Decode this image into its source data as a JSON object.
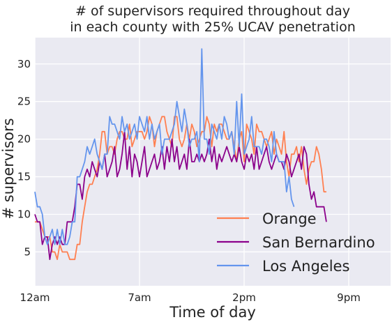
{
  "chart_data": {
    "type": "line",
    "title_lines": [
      "# of supervisors required throughout day",
      "in each county with 25% UCAV penetration"
    ],
    "xlabel": "Time of day",
    "ylabel": "# supervisors",
    "x_ticks": [
      {
        "label": "12am",
        "hour": 0
      },
      {
        "label": "7am",
        "hour": 7
      },
      {
        "label": "2pm",
        "hour": 14
      },
      {
        "label": "9pm",
        "hour": 21
      }
    ],
    "y_ticks": [
      5,
      10,
      15,
      20,
      25,
      30
    ],
    "xlim": [
      0,
      23.8
    ],
    "ylim": [
      0.5,
      33.5
    ],
    "x_step_hours": 0.1667,
    "grid": true,
    "background": "#EAEAF2",
    "legend_position": "lower-right",
    "series": [
      {
        "name": "Orange",
        "color": "#FF7F50",
        "values": [
          9,
          9,
          9,
          8,
          7,
          7,
          7,
          5,
          5,
          4,
          6,
          5,
          5,
          5,
          4,
          4,
          4,
          6,
          6,
          9,
          11,
          13,
          14,
          14,
          15,
          16,
          18,
          21,
          21,
          18,
          19,
          19,
          18,
          20,
          21,
          21,
          20,
          20,
          22,
          19,
          20,
          21,
          21,
          21,
          20,
          21,
          23,
          22,
          19,
          21,
          22,
          23,
          23,
          21,
          20,
          19,
          23,
          23,
          20,
          19,
          20,
          22,
          20,
          22,
          21,
          19,
          20,
          21,
          21,
          23,
          22,
          19,
          22,
          21,
          22,
          22,
          21,
          20,
          20,
          21,
          19,
          17,
          20,
          21,
          17,
          22,
          21,
          20,
          18,
          22,
          21,
          21,
          20,
          19,
          20,
          21,
          18,
          20,
          19,
          18,
          21,
          17,
          15,
          18,
          18,
          19,
          17,
          19,
          16,
          14,
          16,
          17,
          17,
          19,
          18,
          16,
          13,
          13
        ]
      },
      {
        "name": "San Bernardino",
        "color": "#8B008B",
        "values": [
          10,
          9,
          9,
          6,
          7,
          7,
          4,
          6,
          7,
          6,
          7,
          6,
          6,
          9,
          9,
          9,
          11,
          14,
          14,
          12,
          15,
          16,
          15,
          17,
          16,
          15,
          17,
          16,
          18,
          15,
          16,
          17,
          19,
          15,
          16,
          18,
          21,
          16,
          19,
          15,
          18,
          17,
          15,
          17,
          19,
          15,
          16,
          17,
          18,
          16,
          17,
          19,
          16,
          19,
          17,
          20,
          17,
          19,
          16,
          17,
          18,
          16,
          20,
          17,
          17,
          18,
          17,
          18,
          17,
          18,
          20,
          17,
          19,
          16,
          18,
          17,
          18,
          19,
          18,
          17,
          18,
          17,
          19,
          17,
          16,
          18,
          17,
          18,
          16,
          19,
          16,
          17,
          18,
          19,
          17,
          16,
          17,
          18,
          17,
          17,
          16,
          18,
          17,
          15,
          16,
          17,
          18,
          16,
          19,
          18,
          14,
          12,
          13,
          11,
          11,
          11,
          11,
          9
        ]
      },
      {
        "name": "Los Angeles",
        "color": "#6495ED",
        "values": [
          13,
          11,
          11,
          10,
          7,
          6,
          7,
          8,
          6,
          8,
          6,
          8,
          6,
          6,
          7,
          9,
          9,
          15,
          15,
          16,
          17,
          19,
          18,
          19,
          20,
          18,
          17,
          16,
          18,
          18,
          23,
          22,
          22,
          21,
          20,
          23,
          21,
          22,
          20,
          21,
          22,
          20,
          23,
          22,
          21,
          23,
          20,
          22,
          20,
          21,
          22,
          18,
          20,
          20,
          20,
          21,
          22,
          25,
          23,
          21,
          24,
          22,
          19,
          20,
          20,
          21,
          17,
          32,
          20,
          20,
          18,
          22,
          21,
          20,
          22,
          20,
          23,
          22,
          20,
          21,
          18,
          25,
          19,
          26,
          18,
          19,
          20,
          23,
          19,
          19,
          19,
          18,
          20,
          20,
          19,
          17,
          21,
          18,
          17,
          17,
          17,
          13,
          15,
          12,
          11
        ]
      }
    ]
  }
}
